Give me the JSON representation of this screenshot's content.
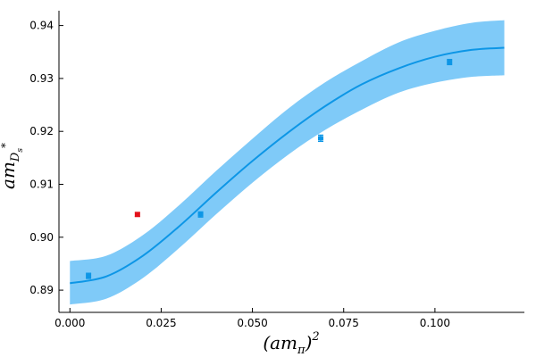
{
  "chart_data": {
    "type": "scatter",
    "xlabel": {
      "base": "(am",
      "sub": "π",
      "close": ")",
      "sup": "2"
    },
    "ylabel": {
      "base": "am",
      "sub": "D",
      "subsub": "s",
      "sup": "*"
    },
    "xlim": [
      -0.003,
      0.1245
    ],
    "ylim": [
      0.8858,
      0.9428
    ],
    "x_ticks": [
      {
        "value": 0.0,
        "label": "0.000"
      },
      {
        "value": 0.025,
        "label": "0.025"
      },
      {
        "value": 0.05,
        "label": "0.050"
      },
      {
        "value": 0.075,
        "label": "0.075"
      },
      {
        "value": 0.1,
        "label": "0.100"
      }
    ],
    "y_ticks": [
      {
        "value": 0.89,
        "label": "0.89"
      },
      {
        "value": 0.9,
        "label": "0.90"
      },
      {
        "value": 0.91,
        "label": "0.91"
      },
      {
        "value": 0.92,
        "label": "0.92"
      },
      {
        "value": 0.93,
        "label": "0.93"
      },
      {
        "value": 0.94,
        "label": "0.94"
      }
    ],
    "grid": false,
    "legend": "none",
    "colors": {
      "fit": "#0d96e6",
      "band": "#7fcaf8",
      "fit_points": "#0d96e6",
      "excluded": "#e3121b"
    },
    "fit": {
      "x": [
        0.0,
        0.01,
        0.02,
        0.03,
        0.04,
        0.05,
        0.06,
        0.07,
        0.08,
        0.09,
        0.1,
        0.11,
        0.119
      ],
      "y": [
        0.8913,
        0.8926,
        0.8965,
        0.9021,
        0.9084,
        0.9144,
        0.9199,
        0.9248,
        0.9289,
        0.9319,
        0.9341,
        0.9354,
        0.9358
      ],
      "upper": [
        0.8955,
        0.8965,
        0.9004,
        0.9061,
        0.9125,
        0.9186,
        0.9244,
        0.9293,
        0.9333,
        0.9368,
        0.939,
        0.9405,
        0.941
      ],
      "lower": [
        0.8873,
        0.8884,
        0.8923,
        0.898,
        0.9043,
        0.9103,
        0.9157,
        0.9203,
        0.9241,
        0.9273,
        0.9292,
        0.9303,
        0.9306
      ]
    },
    "series": [
      {
        "role": "fitted-points",
        "points": [
          {
            "x": 0.0051,
            "y": 0.8927,
            "err": 0.0005
          },
          {
            "x": 0.0358,
            "y": 0.9043,
            "err": 0.0005
          },
          {
            "x": 0.0687,
            "y": 0.9187,
            "err": 0.0006
          },
          {
            "x": 0.104,
            "y": 0.9331,
            "err": 0.0005
          }
        ]
      },
      {
        "role": "excluded-point",
        "points": [
          {
            "x": 0.0185,
            "y": 0.9043,
            "err": 0.0004
          }
        ]
      }
    ]
  }
}
